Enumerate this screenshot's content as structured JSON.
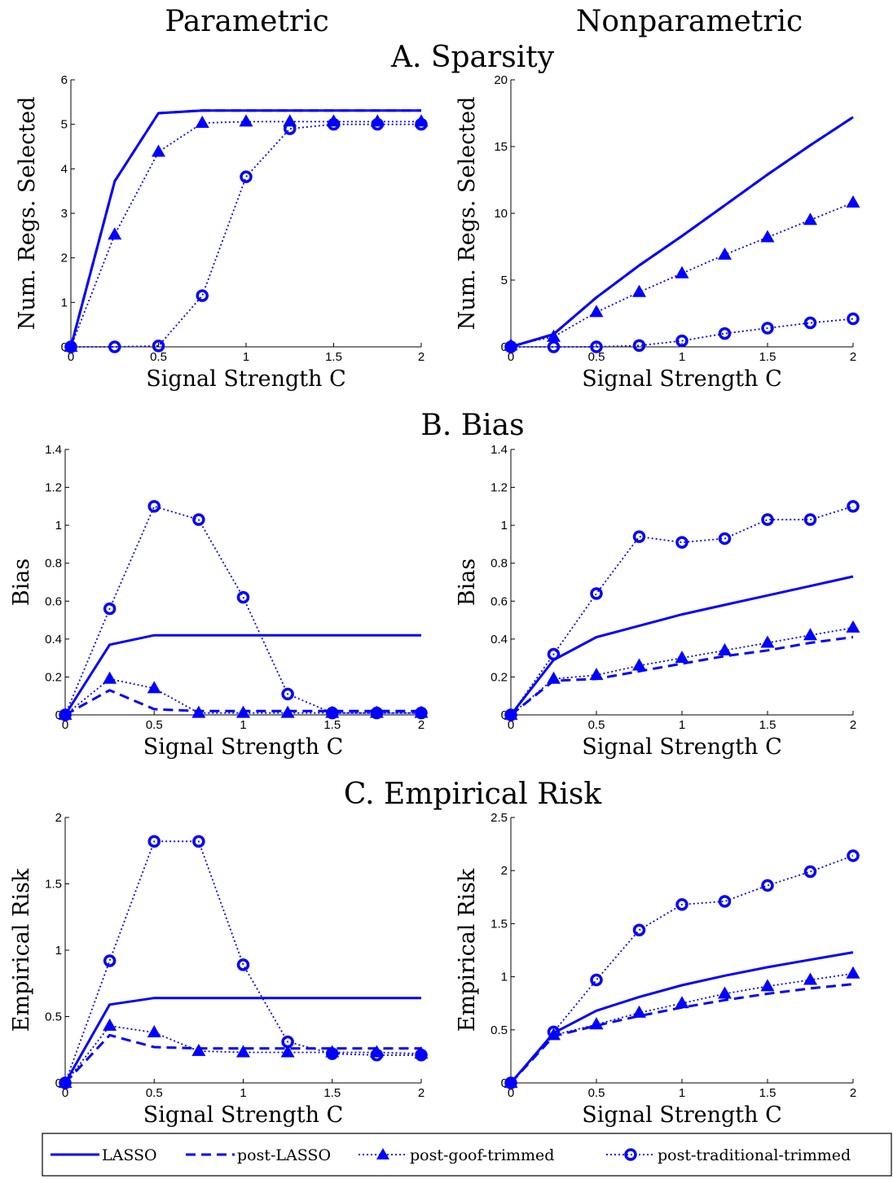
{
  "column_titles": [
    "Parametric",
    "Nonparametric"
  ],
  "section_titles": [
    "A. Sparsity",
    "B. Bias",
    "C. Empirical Risk"
  ],
  "series_color": "#0000ff",
  "legend": [
    {
      "label": "LASSO",
      "style": "solid",
      "marker": "none"
    },
    {
      "label": "post-LASSO",
      "style": "dashed",
      "marker": "none"
    },
    {
      "label": "post-goof-trimmed",
      "style": "dotted",
      "marker": "triangle"
    },
    {
      "label": "post-traditional-trimmed",
      "style": "dotted",
      "marker": "circle"
    }
  ],
  "chart_data": [
    {
      "type": "line",
      "section": "A. Sparsity",
      "column": "Parametric",
      "xlabel": "Signal Strength C",
      "ylabel": "Num. Regs. Selected",
      "xlim": [
        0,
        2
      ],
      "ylim": [
        0,
        6
      ],
      "xticks": [
        "0",
        "0.5",
        "1",
        "1.5",
        "2"
      ],
      "yticks": [
        "0",
        "1",
        "2",
        "3",
        "4",
        "5",
        "6"
      ],
      "x": [
        0,
        0.25,
        0.5,
        0.75,
        1,
        1.25,
        1.5,
        1.75,
        2
      ],
      "series": [
        {
          "name": "LASSO",
          "values": [
            0,
            3.72,
            5.25,
            5.31,
            5.31,
            5.31,
            5.31,
            5.31,
            5.31
          ]
        },
        {
          "name": "post-LASSO",
          "values": [
            0,
            3.72,
            5.25,
            5.31,
            5.31,
            5.31,
            5.31,
            5.31,
            5.31
          ]
        },
        {
          "name": "post-goof-trimmed",
          "values": [
            0,
            2.52,
            4.38,
            5.03,
            5.06,
            5.06,
            5.06,
            5.06,
            5.06
          ]
        },
        {
          "name": "post-traditional-trimmed",
          "values": [
            0,
            0,
            0.02,
            1.15,
            3.82,
            4.9,
            5.0,
            5.0,
            5.0
          ]
        }
      ]
    },
    {
      "type": "line",
      "section": "A. Sparsity",
      "column": "Nonparametric",
      "xlabel": "Signal Strength C",
      "ylabel": "Num. Regs. Selected",
      "xlim": [
        0,
        2
      ],
      "ylim": [
        0,
        20
      ],
      "xticks": [
        "0",
        "0.5",
        "1",
        "1.5",
        "2"
      ],
      "yticks": [
        "0",
        "5",
        "10",
        "15",
        "20"
      ],
      "x": [
        0,
        0.25,
        0.5,
        0.75,
        1,
        1.25,
        1.5,
        1.75,
        2
      ],
      "series": [
        {
          "name": "LASSO",
          "values": [
            0,
            0.95,
            3.7,
            6.1,
            8.3,
            10.6,
            12.9,
            15.1,
            17.2
          ]
        },
        {
          "name": "post-LASSO",
          "values": [
            0,
            0.95,
            3.7,
            6.1,
            8.3,
            10.6,
            12.9,
            15.1,
            17.2
          ]
        },
        {
          "name": "post-goof-trimmed",
          "values": [
            0.1,
            0.75,
            2.6,
            4.1,
            5.5,
            6.9,
            8.2,
            9.5,
            10.8
          ]
        },
        {
          "name": "post-traditional-trimmed",
          "values": [
            0,
            0,
            0,
            0.1,
            0.45,
            1.0,
            1.4,
            1.8,
            2.1
          ]
        }
      ]
    },
    {
      "type": "line",
      "section": "B. Bias",
      "column": "Parametric",
      "xlabel": "Signal Strength C",
      "ylabel": "Bias",
      "xlim": [
        0,
        2
      ],
      "ylim": [
        0,
        1.4
      ],
      "xticks": [
        "0",
        "0.5",
        "1",
        "1.5",
        "2"
      ],
      "yticks": [
        "0",
        "0.2",
        "0.4",
        "0.6",
        "0.8",
        "1",
        "1.2",
        "1.4"
      ],
      "x": [
        0,
        0.25,
        0.5,
        0.75,
        1,
        1.25,
        1.5,
        1.75,
        2
      ],
      "series": [
        {
          "name": "LASSO",
          "values": [
            0,
            0.37,
            0.42,
            0.42,
            0.42,
            0.42,
            0.42,
            0.42,
            0.42
          ]
        },
        {
          "name": "post-LASSO",
          "values": [
            0,
            0.13,
            0.03,
            0.02,
            0.02,
            0.02,
            0.02,
            0.02,
            0.02
          ]
        },
        {
          "name": "post-goof-trimmed",
          "values": [
            0,
            0.19,
            0.14,
            0.01,
            0.01,
            0.01,
            0.01,
            0.01,
            0.01
          ]
        },
        {
          "name": "post-traditional-trimmed",
          "values": [
            0,
            0.56,
            1.1,
            1.03,
            0.62,
            0.11,
            0.01,
            0.01,
            0.01
          ]
        }
      ]
    },
    {
      "type": "line",
      "section": "B. Bias",
      "column": "Nonparametric",
      "xlabel": "Signal Strength C",
      "ylabel": "Bias",
      "xlim": [
        0,
        2
      ],
      "ylim": [
        0,
        1.4
      ],
      "xticks": [
        "0",
        "0.5",
        "1",
        "1.5",
        "2"
      ],
      "yticks": [
        "0",
        "0.2",
        "0.4",
        "0.6",
        "0.8",
        "1",
        "1.2",
        "1.4"
      ],
      "x": [
        0,
        0.25,
        0.5,
        0.75,
        1,
        1.25,
        1.5,
        1.75,
        2
      ],
      "series": [
        {
          "name": "LASSO",
          "values": [
            0,
            0.29,
            0.41,
            0.47,
            0.53,
            0.58,
            0.63,
            0.68,
            0.73
          ]
        },
        {
          "name": "post-LASSO",
          "values": [
            0,
            0.18,
            0.19,
            0.23,
            0.27,
            0.31,
            0.34,
            0.38,
            0.41
          ]
        },
        {
          "name": "post-goof-trimmed",
          "values": [
            0,
            0.19,
            0.21,
            0.26,
            0.3,
            0.34,
            0.38,
            0.42,
            0.46
          ]
        },
        {
          "name": "post-traditional-trimmed",
          "values": [
            0,
            0.32,
            0.64,
            0.94,
            0.91,
            0.93,
            1.03,
            1.03,
            1.1
          ]
        }
      ]
    },
    {
      "type": "line",
      "section": "C. Empirical Risk",
      "column": "Parametric",
      "xlabel": "Signal Strength C",
      "ylabel": "Empirical Risk",
      "xlim": [
        0,
        2
      ],
      "ylim": [
        0,
        2
      ],
      "xticks": [
        "0",
        "0.5",
        "1",
        "1.5",
        "2"
      ],
      "yticks": [
        "0",
        "0.5",
        "1",
        "1.5",
        "2"
      ],
      "x": [
        0,
        0.25,
        0.5,
        0.75,
        1,
        1.25,
        1.5,
        1.75,
        2
      ],
      "series": [
        {
          "name": "LASSO",
          "values": [
            0,
            0.59,
            0.64,
            0.64,
            0.64,
            0.64,
            0.64,
            0.64,
            0.64
          ]
        },
        {
          "name": "post-LASSO",
          "values": [
            0,
            0.36,
            0.27,
            0.26,
            0.26,
            0.26,
            0.26,
            0.26,
            0.26
          ]
        },
        {
          "name": "post-goof-trimmed",
          "values": [
            0,
            0.43,
            0.38,
            0.24,
            0.23,
            0.23,
            0.23,
            0.23,
            0.22
          ]
        },
        {
          "name": "post-traditional-trimmed",
          "values": [
            0,
            0.92,
            1.82,
            1.82,
            0.89,
            0.31,
            0.22,
            0.21,
            0.21
          ]
        }
      ]
    },
    {
      "type": "line",
      "section": "C. Empirical Risk",
      "column": "Nonparametric",
      "xlabel": "Signal Strength C",
      "ylabel": "Empirical Risk",
      "xlim": [
        0,
        2
      ],
      "ylim": [
        0,
        2.5
      ],
      "xticks": [
        "0",
        "0.5",
        "1",
        "1.5",
        "2"
      ],
      "yticks": [
        "0",
        "0.5",
        "1",
        "1.5",
        "2",
        "2.5"
      ],
      "x": [
        0,
        0.25,
        0.5,
        0.75,
        1,
        1.25,
        1.5,
        1.75,
        2
      ],
      "series": [
        {
          "name": "LASSO",
          "values": [
            0,
            0.47,
            0.68,
            0.81,
            0.92,
            1.01,
            1.09,
            1.16,
            1.23
          ]
        },
        {
          "name": "post-LASSO",
          "values": [
            0,
            0.44,
            0.54,
            0.63,
            0.71,
            0.78,
            0.84,
            0.89,
            0.93
          ]
        },
        {
          "name": "post-goof-trimmed",
          "values": [
            0,
            0.45,
            0.55,
            0.66,
            0.75,
            0.84,
            0.91,
            0.97,
            1.03
          ]
        },
        {
          "name": "post-traditional-trimmed",
          "values": [
            0,
            0.48,
            0.97,
            1.44,
            1.68,
            1.71,
            1.86,
            1.99,
            2.14
          ]
        }
      ]
    }
  ]
}
